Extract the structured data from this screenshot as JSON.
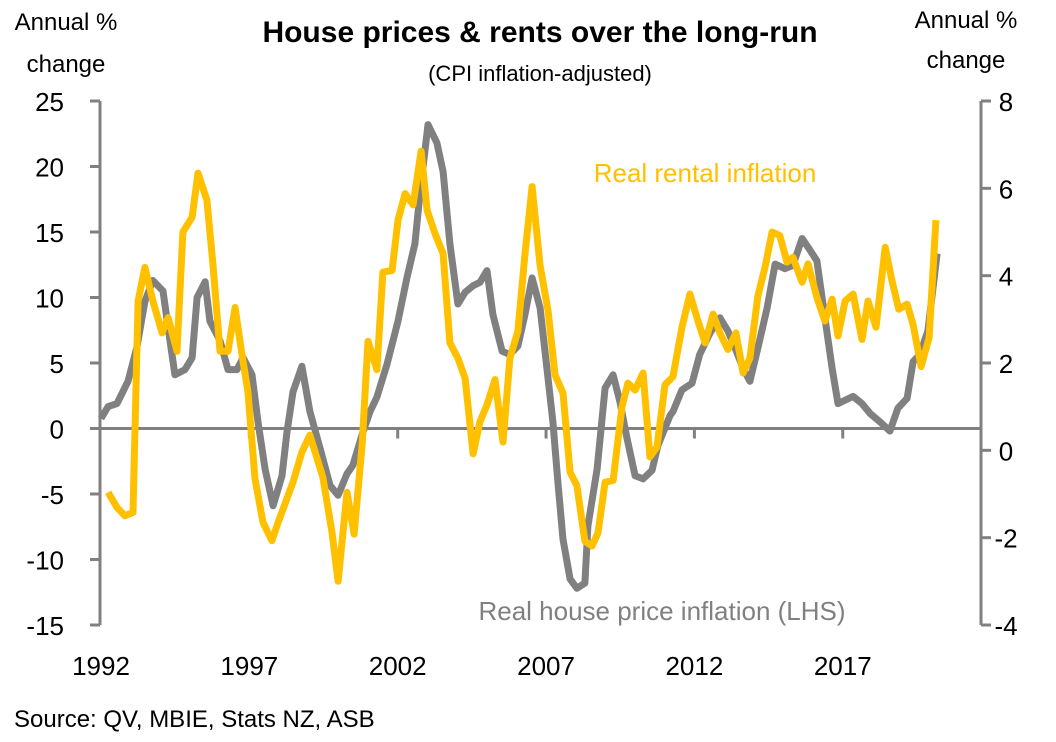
{
  "chart_data": {
    "type": "line",
    "title": "House prices & rents over the long-run",
    "subtitle": "(CPI inflation-adjusted)",
    "ylabel_left": [
      "Annual %",
      "change"
    ],
    "ylabel_right": [
      "Annual %",
      "change"
    ],
    "xlabel": "",
    "source": "Source: QV, MBIE, Stats NZ, ASB",
    "x_range": [
      1992,
      2021
    ],
    "x_ticks": [
      1992,
      1997,
      2002,
      2007,
      2012,
      2017
    ],
    "x_tick_labels": [
      "1992",
      "1997",
      "2002",
      "2007",
      "2012",
      "2017"
    ],
    "y_left": {
      "range": [
        -15,
        25
      ],
      "ticks": [
        -15,
        -10,
        -5,
        0,
        5,
        10,
        15,
        20,
        25
      ],
      "tick_labels": [
        "-15",
        "-10",
        "-5",
        "0",
        "5",
        "10",
        "15",
        "20",
        "25"
      ]
    },
    "y_right": {
      "range": [
        -4,
        8
      ],
      "ticks": [
        -4,
        -2,
        0,
        2,
        4,
        6,
        8
      ],
      "tick_labels": [
        "-4",
        "-2",
        "0",
        "2",
        "4",
        "6",
        "8"
      ]
    },
    "grid": false,
    "series": [
      {
        "name": "Real house price inflation (LHS)",
        "axis": "left",
        "color": "#808080",
        "label_position": "bottom-center",
        "points": [
          [
            1992.0,
            0.77
          ],
          [
            1992.24,
            1.67
          ],
          [
            1992.54,
            1.9
          ],
          [
            1992.91,
            3.6
          ],
          [
            1993.21,
            6.2
          ],
          [
            1993.48,
            9.7
          ],
          [
            1993.75,
            11.3
          ],
          [
            1994.09,
            10.5
          ],
          [
            1994.26,
            7.7
          ],
          [
            1994.49,
            4.1
          ],
          [
            1994.83,
            4.5
          ],
          [
            1995.07,
            5.4
          ],
          [
            1995.24,
            10.0
          ],
          [
            1995.51,
            11.2
          ],
          [
            1995.67,
            8.2
          ],
          [
            1996.01,
            6.7
          ],
          [
            1996.28,
            4.5
          ],
          [
            1996.58,
            4.5
          ],
          [
            1996.79,
            5.4
          ],
          [
            1997.09,
            4.1
          ],
          [
            1997.29,
            0.5
          ],
          [
            1997.53,
            -3.1
          ],
          [
            1997.8,
            -5.9
          ],
          [
            1998.1,
            -3.6
          ],
          [
            1998.27,
            -0.25
          ],
          [
            1998.47,
            2.8
          ],
          [
            1998.77,
            4.75
          ],
          [
            1999.04,
            1.3
          ],
          [
            1999.38,
            -1.5
          ],
          [
            1999.72,
            -4.35
          ],
          [
            1999.99,
            -5.1
          ],
          [
            2000.29,
            -3.45
          ],
          [
            2000.49,
            -2.8
          ],
          [
            2000.83,
            -0.25
          ],
          [
            2001.07,
            1.3
          ],
          [
            2001.3,
            2.4
          ],
          [
            2001.64,
            4.9
          ],
          [
            2002.01,
            8.2
          ],
          [
            2002.31,
            11.5
          ],
          [
            2002.58,
            14.1
          ],
          [
            2002.75,
            17.95
          ],
          [
            2003.02,
            23.2
          ],
          [
            2003.32,
            21.8
          ],
          [
            2003.53,
            19.6
          ],
          [
            2003.76,
            14.1
          ],
          [
            2004.03,
            9.5
          ],
          [
            2004.27,
            10.4
          ],
          [
            2004.54,
            10.9
          ],
          [
            2004.77,
            11.15
          ],
          [
            2005.01,
            12.05
          ],
          [
            2005.21,
            8.7
          ],
          [
            2005.52,
            5.9
          ],
          [
            2005.78,
            5.65
          ],
          [
            2006.05,
            6.3
          ],
          [
            2006.29,
            8.7
          ],
          [
            2006.53,
            11.5
          ],
          [
            2006.8,
            9.2
          ],
          [
            2007.03,
            4.6
          ],
          [
            2007.23,
            0.5
          ],
          [
            2007.4,
            -4.1
          ],
          [
            2007.57,
            -8.45
          ],
          [
            2007.81,
            -11.5
          ],
          [
            2008.04,
            -12.2
          ],
          [
            2008.31,
            -11.8
          ],
          [
            2008.41,
            -7.45
          ],
          [
            2008.72,
            -3.1
          ],
          [
            2008.99,
            3.1
          ],
          [
            2009.26,
            4.1
          ],
          [
            2009.49,
            2.05
          ],
          [
            2009.73,
            -0.75
          ],
          [
            2010.0,
            -3.6
          ],
          [
            2010.27,
            -3.85
          ],
          [
            2010.57,
            -3.2
          ],
          [
            2010.77,
            -1.3
          ],
          [
            2011.18,
            1.0
          ],
          [
            2011.28,
            1.3
          ],
          [
            2011.58,
            2.95
          ],
          [
            2011.92,
            3.45
          ],
          [
            2012.18,
            5.65
          ],
          [
            2012.53,
            7.3
          ],
          [
            2012.86,
            8.45
          ],
          [
            2013.13,
            7.45
          ],
          [
            2013.37,
            6.15
          ],
          [
            2013.64,
            4.6
          ],
          [
            2013.87,
            3.6
          ],
          [
            2014.14,
            6.15
          ],
          [
            2014.45,
            9.2
          ],
          [
            2014.72,
            12.55
          ],
          [
            2015.05,
            12.2
          ],
          [
            2015.32,
            12.45
          ],
          [
            2015.63,
            14.5
          ],
          [
            2015.9,
            13.6
          ],
          [
            2016.13,
            12.8
          ],
          [
            2016.4,
            8.45
          ],
          [
            2016.64,
            4.6
          ],
          [
            2016.84,
            1.9
          ],
          [
            2017.35,
            2.45
          ],
          [
            2017.65,
            1.9
          ],
          [
            2017.92,
            1.15
          ],
          [
            2018.26,
            0.5
          ],
          [
            2018.59,
            -0.2
          ],
          [
            2018.86,
            1.55
          ],
          [
            2019.17,
            2.3
          ],
          [
            2019.37,
            5.1
          ],
          [
            2019.6,
            5.65
          ],
          [
            2019.87,
            7.45
          ],
          [
            2020.18,
            13.35
          ]
        ]
      },
      {
        "name": "Real rental inflation",
        "axis": "right",
        "color": "#FFC000",
        "label_position": "top-right",
        "points": [
          [
            1992.24,
            -0.96
          ],
          [
            1992.54,
            -1.31
          ],
          [
            1992.81,
            -1.5
          ],
          [
            1993.08,
            -1.42
          ],
          [
            1993.25,
            3.42
          ],
          [
            1993.48,
            4.19
          ],
          [
            1993.75,
            3.42
          ],
          [
            1994.06,
            2.69
          ],
          [
            1994.26,
            3.04
          ],
          [
            1994.56,
            2.27
          ],
          [
            1994.76,
            5.0
          ],
          [
            1995.07,
            5.34
          ],
          [
            1995.27,
            6.35
          ],
          [
            1995.57,
            5.73
          ],
          [
            1995.77,
            4.27
          ],
          [
            1996.01,
            2.27
          ],
          [
            1996.28,
            2.27
          ],
          [
            1996.52,
            3.27
          ],
          [
            1996.75,
            2.2
          ],
          [
            1996.95,
            1.35
          ],
          [
            1997.19,
            -0.65
          ],
          [
            1997.46,
            -1.65
          ],
          [
            1997.76,
            -2.07
          ],
          [
            1997.97,
            -1.65
          ],
          [
            1998.47,
            -0.73
          ],
          [
            1998.77,
            -0.04
          ],
          [
            1999.04,
            0.35
          ],
          [
            1999.48,
            -0.62
          ],
          [
            1999.79,
            -1.89
          ],
          [
            1999.99,
            -3.0
          ],
          [
            2000.29,
            -0.96
          ],
          [
            2000.53,
            -1.92
          ],
          [
            2000.8,
            0.12
          ],
          [
            2001.0,
            2.5
          ],
          [
            2001.3,
            1.85
          ],
          [
            2001.5,
            4.08
          ],
          [
            2001.81,
            4.12
          ],
          [
            2002.01,
            5.27
          ],
          [
            2002.25,
            5.88
          ],
          [
            2002.52,
            5.62
          ],
          [
            2002.79,
            6.85
          ],
          [
            2002.99,
            5.5
          ],
          [
            2003.26,
            4.96
          ],
          [
            2003.53,
            4.5
          ],
          [
            2003.76,
            2.46
          ],
          [
            2004.03,
            2.11
          ],
          [
            2004.27,
            1.65
          ],
          [
            2004.54,
            -0.08
          ],
          [
            2004.77,
            0.65
          ],
          [
            2005.01,
            1.04
          ],
          [
            2005.28,
            1.62
          ],
          [
            2005.55,
            0.19
          ],
          [
            2005.78,
            2.11
          ],
          [
            2006.05,
            2.73
          ],
          [
            2006.29,
            4.5
          ],
          [
            2006.53,
            6.04
          ],
          [
            2006.8,
            4.23
          ],
          [
            2007.07,
            3.19
          ],
          [
            2007.3,
            1.73
          ],
          [
            2007.57,
            1.31
          ],
          [
            2007.81,
            -0.5
          ],
          [
            2008.04,
            -0.81
          ],
          [
            2008.31,
            -2.08
          ],
          [
            2008.55,
            -2.19
          ],
          [
            2008.75,
            -1.89
          ],
          [
            2008.99,
            -0.73
          ],
          [
            2009.26,
            -0.69
          ],
          [
            2009.56,
            1.0
          ],
          [
            2009.76,
            1.54
          ],
          [
            2010.0,
            1.38
          ],
          [
            2010.27,
            1.77
          ],
          [
            2010.5,
            -0.15
          ],
          [
            2010.74,
            0.08
          ],
          [
            2011.01,
            1.5
          ],
          [
            2011.28,
            1.69
          ],
          [
            2011.58,
            2.81
          ],
          [
            2011.85,
            3.58
          ],
          [
            2012.12,
            2.96
          ],
          [
            2012.36,
            2.46
          ],
          [
            2012.63,
            3.12
          ],
          [
            2012.86,
            2.69
          ],
          [
            2013.13,
            2.31
          ],
          [
            2013.4,
            2.69
          ],
          [
            2013.64,
            1.77
          ],
          [
            2013.87,
            2.11
          ],
          [
            2014.14,
            3.54
          ],
          [
            2014.38,
            4.19
          ],
          [
            2014.62,
            5.0
          ],
          [
            2014.88,
            4.92
          ],
          [
            2015.12,
            4.31
          ],
          [
            2015.32,
            4.42
          ],
          [
            2015.63,
            3.85
          ],
          [
            2015.83,
            4.27
          ],
          [
            2016.13,
            3.5
          ],
          [
            2016.4,
            2.96
          ],
          [
            2016.64,
            3.46
          ],
          [
            2016.84,
            2.62
          ],
          [
            2017.08,
            3.42
          ],
          [
            2017.35,
            3.58
          ],
          [
            2017.65,
            2.54
          ],
          [
            2017.85,
            3.42
          ],
          [
            2018.12,
            2.82
          ],
          [
            2018.43,
            4.65
          ],
          [
            2018.66,
            3.88
          ],
          [
            2018.89,
            3.23
          ],
          [
            2019.17,
            3.35
          ],
          [
            2019.37,
            2.88
          ],
          [
            2019.64,
            1.92
          ],
          [
            2019.91,
            2.58
          ],
          [
            2020.14,
            5.27
          ]
        ]
      }
    ]
  }
}
